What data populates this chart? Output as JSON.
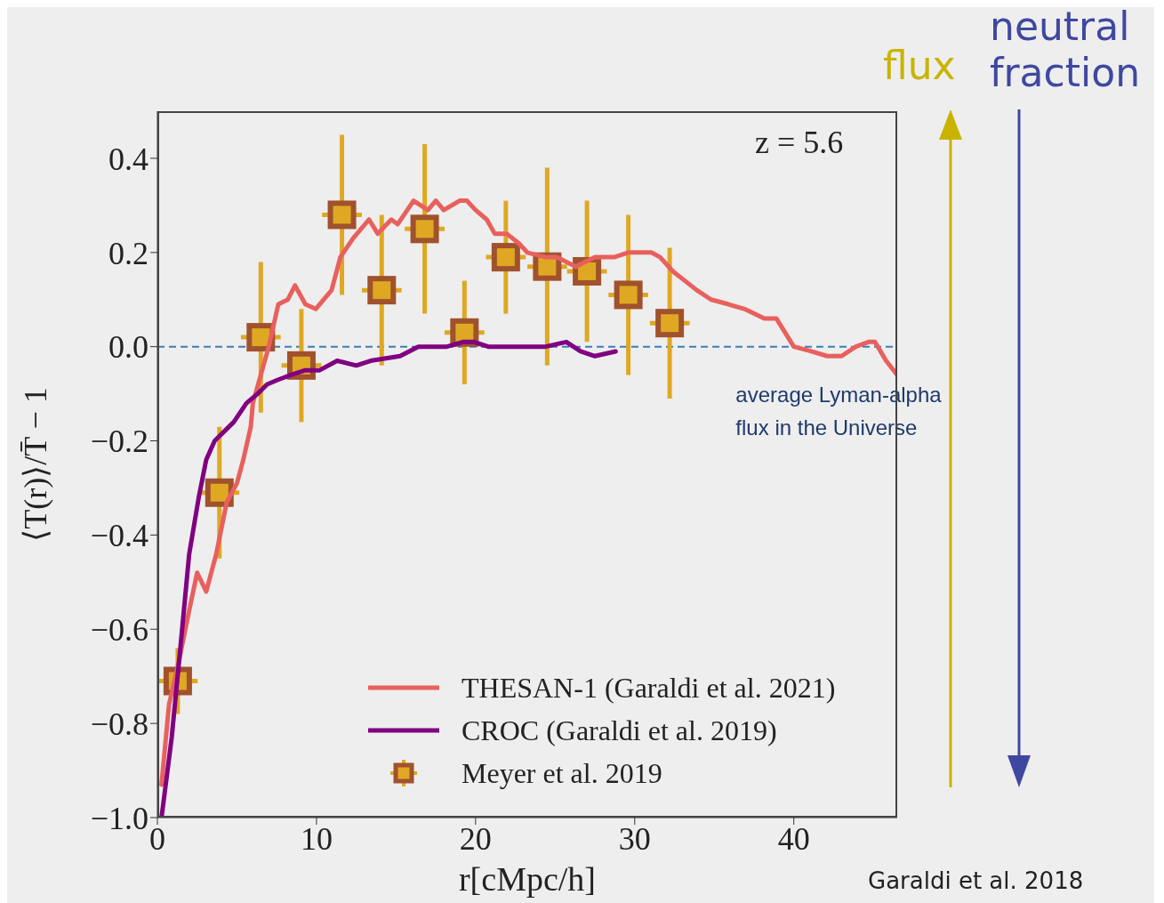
{
  "chart_data": {
    "type": "line",
    "xlabel": "r[cMpc/h]",
    "ylabel": "⟨T(r)⟩/T̄ − 1",
    "xlim": [
      0,
      46.5
    ],
    "xticks": [
      0,
      10,
      20,
      30,
      40
    ],
    "ylim": [
      -1.0,
      0.5
    ],
    "yticks": [
      {
        "value": -1.0,
        "label": "−1.0"
      },
      {
        "value": -0.8,
        "label": "−0.8"
      },
      {
        "value": -0.6,
        "label": "−0.6"
      },
      {
        "value": -0.4,
        "label": "−0.4"
      },
      {
        "value": -0.2,
        "label": "−0.2"
      },
      {
        "value": 0,
        "label": "0.0"
      },
      {
        "value": 0.2,
        "label": "0.2"
      },
      {
        "value": 0.4,
        "label": "0.4"
      }
    ],
    "grid": false,
    "legend": "bottom right",
    "ref_lines": [
      {
        "axis": "y",
        "value": 0,
        "label": "average Lyman-alpha flux in the Universe",
        "color": "#3a7fb8",
        "line_style": "dashed"
      }
    ],
    "annotations": [
      "z = 5.6",
      "flux",
      "neutral fraction",
      "Garaldi et al. 2018"
    ],
    "series": [
      {
        "name": "THESAN-1 (Garaldi et al. 2021)",
        "type": "line",
        "color": "#e8605e",
        "marker": "none",
        "line_style": "solid",
        "x": [
          0.26,
          0.73,
          1.28,
          2.0,
          2.5,
          3.07,
          3.7,
          4.36,
          5.0,
          5.4,
          5.87,
          6.0,
          7.0,
          7.6,
          8.2,
          8.65,
          9.3,
          9.95,
          10.95,
          11.5,
          12.3,
          13.3,
          13.85,
          14.7,
          15.1,
          16.1,
          17.0,
          17.5,
          18.0,
          19.0,
          19.45,
          20.0,
          20.7,
          21.2,
          21.95,
          22.7,
          23.25,
          24.4,
          25.1,
          26.3,
          27.5,
          28.7,
          29.6,
          30.3,
          31.05,
          31.6,
          32.4,
          33.9,
          34.8,
          35.9,
          36.9,
          38.15,
          38.9,
          40.0,
          41.1,
          42.1,
          43.0,
          43.9,
          44.7,
          45.1,
          45.8,
          46.5
        ],
        "values": [
          -0.93,
          -0.76,
          -0.68,
          -0.56,
          -0.48,
          -0.52,
          -0.44,
          -0.33,
          -0.29,
          -0.24,
          -0.17,
          -0.12,
          0.0,
          0.09,
          0.1,
          0.13,
          0.09,
          0.08,
          0.12,
          0.19,
          0.23,
          0.27,
          0.24,
          0.27,
          0.26,
          0.31,
          0.29,
          0.31,
          0.29,
          0.31,
          0.31,
          0.29,
          0.27,
          0.24,
          0.24,
          0.22,
          0.2,
          0.19,
          0.19,
          0.17,
          0.19,
          0.19,
          0.2,
          0.2,
          0.2,
          0.19,
          0.16,
          0.12,
          0.1,
          0.09,
          0.08,
          0.06,
          0.06,
          0.0,
          -0.01,
          -0.02,
          -0.02,
          0.0,
          0.01,
          0.01,
          -0.03,
          -0.06
        ]
      },
      {
        "name": "CROC (Garaldi et al. 2019)",
        "type": "line",
        "color": "#800080",
        "marker": "none",
        "line_style": "solid",
        "x": [
          0.26,
          0.9,
          1.47,
          2.0,
          2.6,
          3.07,
          3.6,
          4.5,
          4.8,
          5.6,
          6.3,
          6.9,
          7.6,
          8.4,
          9.3,
          10.2,
          11.3,
          12.5,
          13.4,
          15.25,
          16.4,
          17.3,
          18.2,
          19.2,
          19.9,
          20.8,
          21.95,
          22.7,
          24.4,
          25.7,
          26.6,
          27.5,
          28.8
        ],
        "values": [
          -1.0,
          -0.83,
          -0.63,
          -0.44,
          -0.32,
          -0.24,
          -0.2,
          -0.17,
          -0.16,
          -0.12,
          -0.1,
          -0.08,
          -0.07,
          -0.06,
          -0.05,
          -0.05,
          -0.03,
          -0.04,
          -0.03,
          -0.02,
          0.0,
          0.0,
          0.0,
          0.01,
          0.01,
          0.0,
          0.0,
          0.0,
          0.0,
          0.01,
          -0.01,
          -0.02,
          -0.01
        ]
      },
      {
        "name": "Meyer et al. 2019",
        "type": "scatter",
        "color": "#dfa823",
        "marker": "square",
        "x": [
          1.28,
          3.9,
          6.5,
          9.05,
          11.6,
          14.1,
          16.8,
          19.3,
          21.9,
          24.5,
          27.0,
          29.6,
          32.2
        ],
        "values": [
          -0.71,
          -0.31,
          0.02,
          -0.04,
          0.28,
          0.12,
          0.25,
          0.03,
          0.19,
          0.17,
          0.16,
          0.11,
          0.05
        ],
        "errors": [
          0.07,
          0.14,
          0.16,
          0.12,
          0.17,
          0.16,
          0.18,
          0.11,
          0.12,
          0.21,
          0.15,
          0.17,
          0.16
        ],
        "xerrors": [
          1.25,
          1.25,
          1.25,
          1.25,
          1.25,
          1.25,
          1.25,
          1.25,
          1.25,
          1.25,
          1.25,
          1.25,
          1.25
        ]
      }
    ]
  }
}
